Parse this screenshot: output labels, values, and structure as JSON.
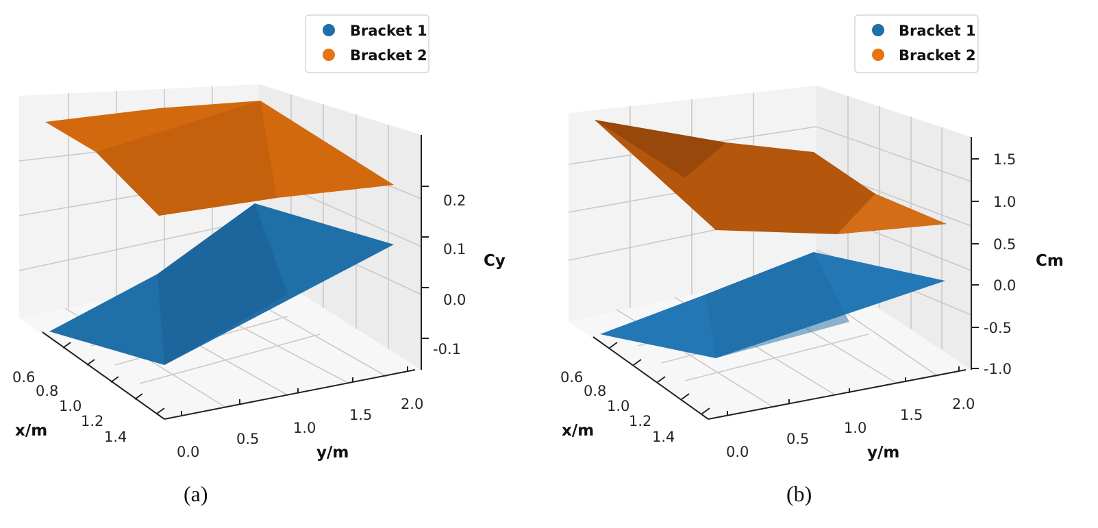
{
  "colors": {
    "bracket1": "#1f6fa8",
    "bracket2": "#d2690e",
    "pane": "#f2f2f2"
  },
  "chart_data": [
    {
      "type": "surface",
      "caption": "(a)",
      "zlabel": "Cy",
      "xlabel": "x/m",
      "ylabel": "y/m",
      "x_ticks": [
        "0.6",
        "0.8",
        "1.0",
        "1.2",
        "1.4"
      ],
      "y_ticks": [
        "0.0",
        "0.5",
        "1.0",
        "1.5",
        "2.0"
      ],
      "z_ticks": [
        "-0.1",
        "0.0",
        "0.1",
        "0.2"
      ],
      "x": [
        0.6,
        1.4
      ],
      "y": [
        0.0,
        2.0
      ],
      "legend": {
        "items": [
          "Bracket 1",
          "Bracket 2"
        ],
        "placement": "top-right"
      },
      "series": [
        {
          "name": "Bracket 1",
          "z_at_corners": {
            "x0.6_y0": -0.06,
            "x1.4_y0": -0.06,
            "x0.6_y2": 0.19,
            "x1.4_y2": 0.13
          }
        },
        {
          "name": "Bracket 2",
          "z_at_corners": {
            "x0.6_y0": 0.24,
            "x1.4_y0": 0.22,
            "x0.6_y2": 0.27,
            "x1.4_y2": 0.22
          }
        }
      ]
    },
    {
      "type": "surface",
      "caption": "(b)",
      "zlabel": "Cm",
      "xlabel": "x/m",
      "ylabel": "y/m",
      "x_ticks": [
        "0.6",
        "0.8",
        "1.0",
        "1.2",
        "1.4"
      ],
      "y_ticks": [
        "0.0",
        "0.5",
        "1.0",
        "1.5",
        "2.0"
      ],
      "z_ticks": [
        "-1.0",
        "-0.5",
        "0.0",
        "0.5",
        "1.0",
        "1.5"
      ],
      "x": [
        0.6,
        1.4
      ],
      "y": [
        0.0,
        2.0
      ],
      "legend": {
        "items": [
          "Bracket 1",
          "Bracket 2"
        ],
        "placement": "top-right"
      },
      "series": [
        {
          "name": "Bracket 1",
          "z_at_corners": {
            "x0.6_y0": -0.6,
            "x1.4_y0": -0.6,
            "x0.6_y2": 0.2,
            "x1.4_y2": -0.1
          }
        },
        {
          "name": "Bracket 2",
          "z_at_corners": {
            "x0.6_y0": 1.6,
            "x1.4_y0": 0.6,
            "x0.6_y2": 0.8,
            "x1.4_y2": 0.6
          }
        }
      ]
    }
  ]
}
